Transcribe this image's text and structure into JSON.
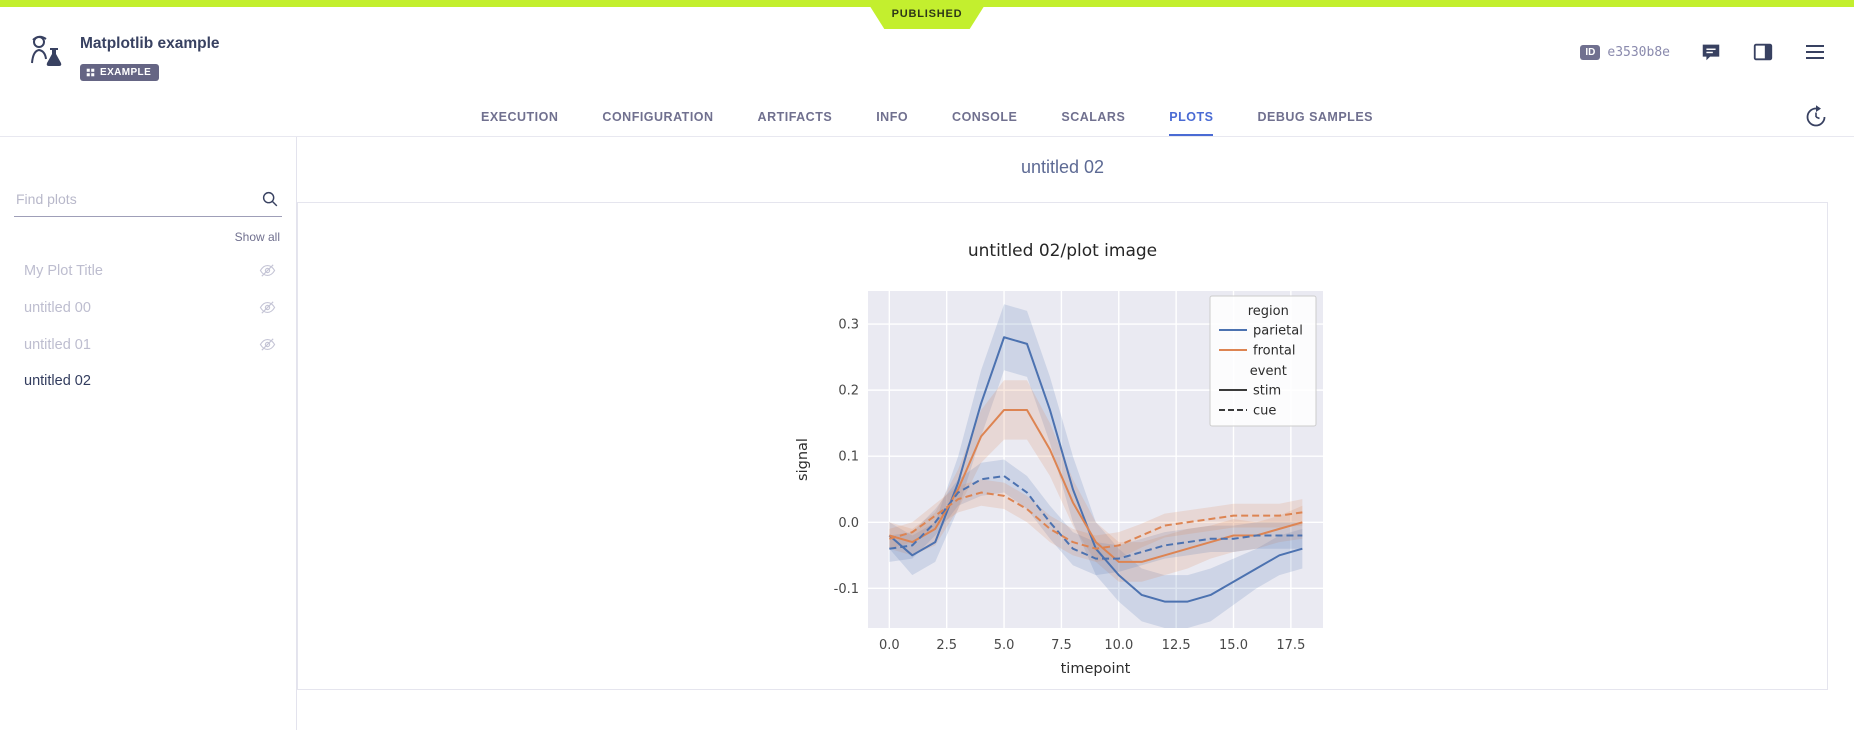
{
  "top": {
    "published_label": "PUBLISHED",
    "bar_color": "#c3ef2e"
  },
  "header": {
    "title": "Matplotlib example",
    "badge": "EXAMPLE",
    "id_label": "ID",
    "id_value": "e3530b8e"
  },
  "tabs": {
    "items": [
      "EXECUTION",
      "CONFIGURATION",
      "ARTIFACTS",
      "INFO",
      "CONSOLE",
      "SCALARS",
      "PLOTS",
      "DEBUG SAMPLES"
    ],
    "active": "PLOTS",
    "accent_color": "#4a6bd4"
  },
  "sidebar": {
    "search_placeholder": "Find plots",
    "show_all": "Show all",
    "items": [
      {
        "label": "My Plot Title",
        "hidden": true
      },
      {
        "label": "untitled 00",
        "hidden": true
      },
      {
        "label": "untitled 01",
        "hidden": true
      },
      {
        "label": "untitled 02",
        "hidden": false,
        "active": true
      }
    ]
  },
  "main": {
    "section_title": "untitled 02",
    "plot_title": "untitled 02/plot image"
  },
  "chart_data": {
    "type": "line",
    "title": "untitled 02/plot image",
    "xlabel": "timepoint",
    "ylabel": "signal",
    "xlim": [
      -0.93,
      18.9
    ],
    "ylim": [
      -0.16,
      0.35
    ],
    "xticks": [
      0.0,
      2.5,
      5.0,
      7.5,
      10.0,
      12.5,
      15.0,
      17.5
    ],
    "yticks": [
      -0.1,
      0.0,
      0.1,
      0.2,
      0.3
    ],
    "grid": true,
    "plot_bg": "#eaeaf2",
    "legend": {
      "position": "upper right",
      "groups": [
        {
          "title": "region",
          "entries": [
            {
              "label": "parietal",
              "color": "#4c72b0",
              "dash": "solid"
            },
            {
              "label": "frontal",
              "color": "#dd8452",
              "dash": "solid"
            }
          ]
        },
        {
          "title": "event",
          "entries": [
            {
              "label": "stim",
              "color": "#3a3a3a",
              "dash": "solid"
            },
            {
              "label": "cue",
              "color": "#3a3a3a",
              "dash": "dashed"
            }
          ]
        }
      ]
    },
    "x": [
      0,
      1,
      2,
      3,
      4,
      5,
      6,
      7,
      8,
      9,
      10,
      11,
      12,
      13,
      14,
      15,
      16,
      17,
      18
    ],
    "series": [
      {
        "name": "parietal stim",
        "color": "#4c72b0",
        "dash": "solid",
        "values": [
          -0.02,
          -0.05,
          -0.03,
          0.06,
          0.18,
          0.28,
          0.27,
          0.17,
          0.05,
          -0.04,
          -0.08,
          -0.11,
          -0.12,
          -0.12,
          -0.11,
          -0.09,
          -0.07,
          -0.05,
          -0.04
        ],
        "band": [
          0.02,
          0.03,
          0.03,
          0.04,
          0.05,
          0.05,
          0.05,
          0.05,
          0.05,
          0.04,
          0.04,
          0.04,
          0.04,
          0.04,
          0.04,
          0.035,
          0.03,
          0.03,
          0.03
        ]
      },
      {
        "name": "frontal stim",
        "color": "#dd8452",
        "dash": "solid",
        "values": [
          -0.02,
          -0.03,
          -0.01,
          0.05,
          0.13,
          0.17,
          0.17,
          0.11,
          0.03,
          -0.03,
          -0.06,
          -0.06,
          -0.05,
          -0.04,
          -0.03,
          -0.02,
          -0.02,
          -0.01,
          0.0
        ],
        "band": [
          0.02,
          0.02,
          0.025,
          0.03,
          0.04,
          0.045,
          0.045,
          0.04,
          0.035,
          0.03,
          0.03,
          0.03,
          0.03,
          0.03,
          0.025,
          0.025,
          0.02,
          0.02,
          0.025
        ]
      },
      {
        "name": "parietal cue",
        "color": "#4c72b0",
        "dash": "dashed",
        "values": [
          -0.04,
          -0.035,
          0.0,
          0.045,
          0.065,
          0.07,
          0.045,
          0.0,
          -0.04,
          -0.055,
          -0.055,
          -0.045,
          -0.035,
          -0.03,
          -0.025,
          -0.025,
          -0.02,
          -0.02,
          -0.02
        ],
        "band": [
          0.02,
          0.02,
          0.02,
          0.02,
          0.025,
          0.025,
          0.025,
          0.025,
          0.025,
          0.025,
          0.02,
          0.02,
          0.02,
          0.02,
          0.02,
          0.02,
          0.02,
          0.02,
          0.02
        ]
      },
      {
        "name": "frontal cue",
        "color": "#dd8452",
        "dash": "dashed",
        "values": [
          -0.025,
          -0.015,
          0.01,
          0.035,
          0.045,
          0.04,
          0.02,
          -0.01,
          -0.03,
          -0.04,
          -0.035,
          -0.02,
          -0.005,
          0.0,
          0.005,
          0.01,
          0.01,
          0.01,
          0.015
        ],
        "band": [
          0.015,
          0.015,
          0.018,
          0.02,
          0.02,
          0.02,
          0.02,
          0.02,
          0.02,
          0.02,
          0.02,
          0.018,
          0.018,
          0.018,
          0.018,
          0.018,
          0.018,
          0.018,
          0.02
        ]
      }
    ]
  }
}
